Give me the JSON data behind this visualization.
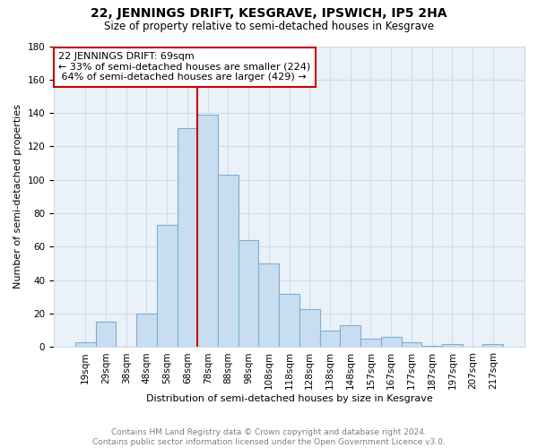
{
  "title": "22, JENNINGS DRIFT, KESGRAVE, IPSWICH, IP5 2HA",
  "subtitle": "Size of property relative to semi-detached houses in Kesgrave",
  "xlabel": "Distribution of semi-detached houses by size in Kesgrave",
  "ylabel": "Number of semi-detached properties",
  "footnote_line1": "Contains HM Land Registry data © Crown copyright and database right 2024.",
  "footnote_line2": "Contains public sector information licensed under the Open Government Licence v3.0.",
  "property_label": "22 JENNINGS DRIFT: 69sqm",
  "smaller_pct": 33,
  "smaller_count": 224,
  "larger_pct": 64,
  "larger_count": 429,
  "bin_labels": [
    "19sqm",
    "29sqm",
    "38sqm",
    "48sqm",
    "58sqm",
    "68sqm",
    "78sqm",
    "88sqm",
    "98sqm",
    "108sqm",
    "118sqm",
    "128sqm",
    "138sqm",
    "148sqm",
    "157sqm",
    "167sqm",
    "177sqm",
    "187sqm",
    "197sqm",
    "207sqm",
    "217sqm"
  ],
  "bar_heights": [
    3,
    15,
    0,
    20,
    73,
    131,
    139,
    103,
    64,
    50,
    32,
    23,
    10,
    13,
    5,
    6,
    3,
    1,
    2,
    0,
    2
  ],
  "bar_color": "#c9ddf0",
  "bar_edge_color": "#7bafd4",
  "vline_color": "#cc0000",
  "vline_bin_index": 5,
  "annotation_box_color": "#cc0000",
  "ylim": [
    0,
    180
  ],
  "yticks": [
    0,
    20,
    40,
    60,
    80,
    100,
    120,
    140,
    160,
    180
  ],
  "grid_color": "#d0dce8",
  "bg_color": "#eaf1f8",
  "title_fontsize": 10,
  "subtitle_fontsize": 8.5,
  "axis_label_fontsize": 8,
  "tick_fontsize": 7.5,
  "footnote_fontsize": 6.5,
  "annotation_fontsize": 8
}
